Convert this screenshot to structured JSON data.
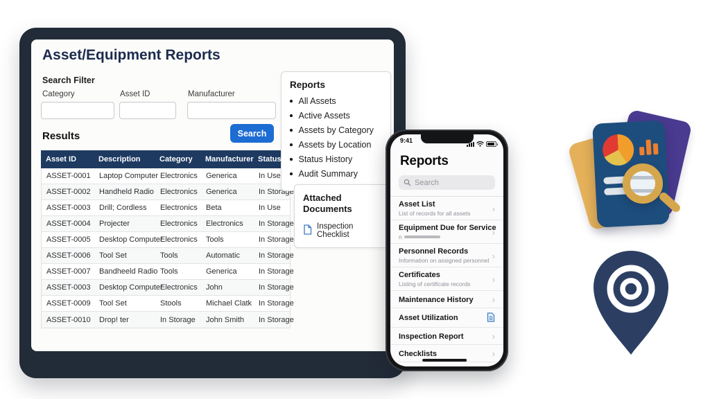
{
  "tablet": {
    "title": "Asset/Equipment Reports",
    "search_filter": {
      "heading": "Search Filter",
      "fields": [
        {
          "label": "Category",
          "value": ""
        },
        {
          "label": "Asset ID",
          "value": ""
        },
        {
          "label": "Manufacturer",
          "value": ""
        }
      ]
    },
    "results": {
      "heading": "Results",
      "search_button_label": "Search",
      "table": {
        "columns": [
          "Asset ID",
          "Description",
          "Category",
          "Manufacturer",
          "Status"
        ],
        "rows": [
          [
            "ASSET-0001",
            "Laptop Computer",
            "Electronics",
            "Generica",
            "In Use"
          ],
          [
            "ASSET-0002",
            "Handheld Radio",
            "Electronics",
            "Generica",
            "In Storage"
          ],
          [
            "ASSET-0003",
            "Drill; Cordless",
            "Electronics",
            "Beta",
            "In Use"
          ],
          [
            "ASSET-0004",
            "Projecter",
            "Electronics",
            "Electronics",
            "In Storage"
          ],
          [
            "ASSET-0005",
            "Desktop Computer",
            "Electronics",
            "Tools",
            "In Storage"
          ],
          [
            "ASSET-0006",
            "Tool Set",
            "Tools",
            "Automatic",
            "In Storage"
          ],
          [
            "ASSET-0007",
            "Bandheeld Radio",
            "Tools",
            "Generica",
            "In Storage"
          ],
          [
            "ASSET-0003",
            "Desktop Computer",
            "Electronics",
            "John",
            "In Storage"
          ],
          [
            "ASSET-0009",
            "Tool Set",
            "Stools",
            "Michael Clatk",
            "In Storage"
          ],
          [
            "ASSET-0010",
            "Drop! ter",
            "In Storage",
            "John Smith",
            "In Storage"
          ]
        ]
      }
    }
  },
  "reports_panel": {
    "heading": "Reports",
    "items": [
      "All Assets",
      "Active Assets",
      "Assets by Category",
      "Assets by Location",
      "Status History",
      "Audit Summary"
    ]
  },
  "attached_documents": {
    "heading": "Attached Documents",
    "items": [
      {
        "icon": "document-icon",
        "label": "Inspection Checklist"
      }
    ]
  },
  "phone": {
    "status_bar": {
      "time": "9:41",
      "icons": [
        "signal-icon",
        "wifi-icon",
        "battery-icon"
      ]
    },
    "title": "Reports",
    "search_placeholder": "Search",
    "list": [
      {
        "title": "Asset List",
        "subtitle": "List of records for all assets",
        "accessory": "chevron"
      },
      {
        "title": "Equipment Due for Service",
        "subtitle": "n",
        "subtitle_redacted": true,
        "accessory": "chevron"
      },
      {
        "title": "Personnel Records",
        "subtitle": "Information on assigned personnel",
        "accessory": "chevron"
      },
      {
        "title": "Certificates",
        "subtitle": "Listing of certificate records",
        "accessory": "chevron"
      },
      {
        "title": "Maintenance History",
        "subtitle": "",
        "accessory": "chevron"
      },
      {
        "title": "Asset Utilization",
        "subtitle": "",
        "accessory": "document"
      },
      {
        "title": "Inspection Report",
        "subtitle": "",
        "accessory": "chevron"
      },
      {
        "title": "Checklists",
        "subtitle": "",
        "accessory": "chevron"
      }
    ],
    "chevron_glyph": "›"
  },
  "decor": {
    "icons": [
      "report-analytics-3d-icon",
      "location-pin-target-3d-icon"
    ]
  },
  "colors": {
    "table_header_bg": "#1e3a61",
    "search_button_bg": "#1c6cd3",
    "title_text": "#1c2b4e",
    "tablet_frame": "#222b38",
    "phone_frame": "#141517",
    "doc_icon_blue": "#3b7bc4",
    "card_yellow": "#e4b059",
    "card_purple": "#4a3a90",
    "card_navy": "#1d4d7c",
    "magnifier_gold": "#d6a64c",
    "pin_navy": "#2c3f63"
  }
}
